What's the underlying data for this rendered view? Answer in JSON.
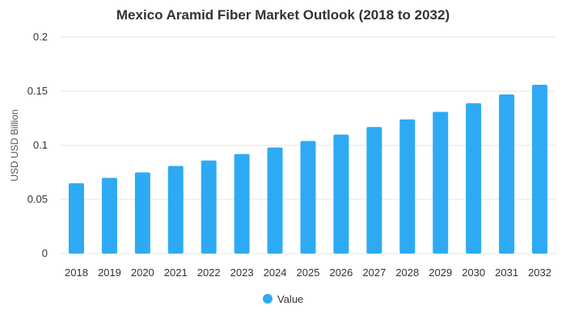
{
  "chart_data": {
    "type": "bar",
    "title": "Mexico Aramid Fiber Market Outlook (2018 to 2032)",
    "xlabel": "",
    "ylabel": "USD USD Billion",
    "categories": [
      "2018",
      "2019",
      "2020",
      "2021",
      "2022",
      "2023",
      "2024",
      "2025",
      "2026",
      "2027",
      "2028",
      "2029",
      "2030",
      "2031",
      "2032"
    ],
    "series": [
      {
        "name": "Value",
        "values": [
          0.065,
          0.07,
          0.075,
          0.081,
          0.086,
          0.092,
          0.098,
          0.104,
          0.11,
          0.117,
          0.124,
          0.131,
          0.139,
          0.147,
          0.156
        ],
        "color": "#2eaaf5"
      }
    ],
    "ylim": [
      0,
      0.2
    ],
    "yticks": [
      "0",
      "0.05",
      "0.1",
      "0.15",
      "0.2"
    ],
    "ytick_values": [
      0,
      0.05,
      0.1,
      0.15,
      0.2
    ],
    "grid": true,
    "legend_position": "bottom"
  }
}
